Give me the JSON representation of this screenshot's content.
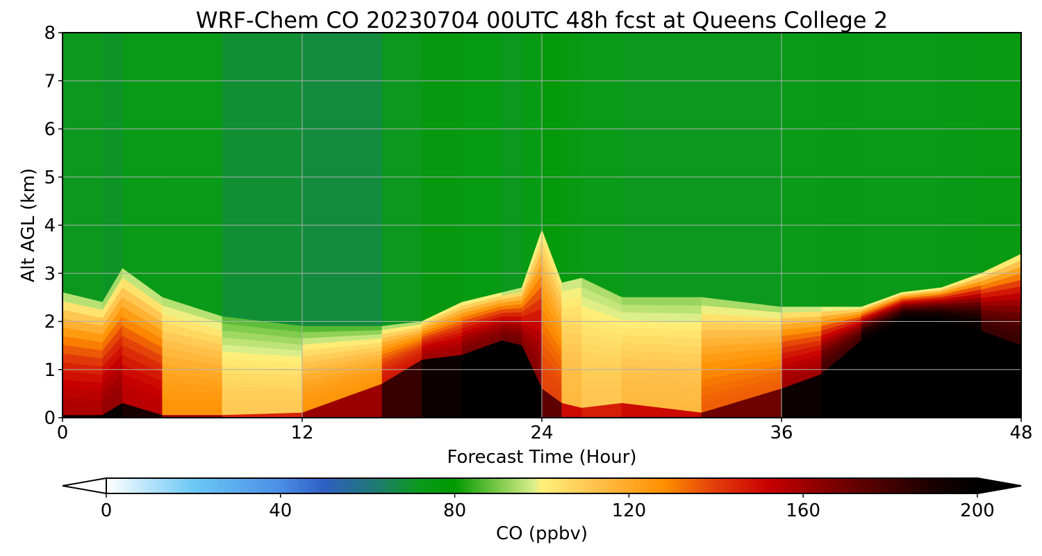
{
  "chart_data": {
    "type": "heatmap",
    "title": "WRF-Chem CO  20230704 00UTC 48h fcst at Queens College 2",
    "xlabel": "Forecast Time (Hour)",
    "ylabel": "Alt AGL (km)",
    "xlim": [
      0,
      48
    ],
    "ylim": [
      0,
      8
    ],
    "x_ticks": [
      0,
      12,
      24,
      36,
      48
    ],
    "y_ticks": [
      0,
      1,
      2,
      3,
      4,
      5,
      6,
      7,
      8
    ],
    "grid": true,
    "colorbar": {
      "label": "CO  (ppbv)",
      "range": [
        0,
        200
      ],
      "ticks": [
        0,
        40,
        80,
        120,
        160,
        200
      ],
      "extend": "both",
      "colormap": [
        {
          "value": 0,
          "color": "#ffffff"
        },
        {
          "value": 20,
          "color": "#6cc8f5"
        },
        {
          "value": 40,
          "color": "#4a8ee6"
        },
        {
          "value": 50,
          "color": "#2f5fc4"
        },
        {
          "value": 62,
          "color": "#1e7a70"
        },
        {
          "value": 72,
          "color": "#0a9a1a"
        },
        {
          "value": 80,
          "color": "#009900"
        },
        {
          "value": 90,
          "color": "#7cc94a"
        },
        {
          "value": 98,
          "color": "#d8ee8a"
        },
        {
          "value": 100,
          "color": "#fff07a"
        },
        {
          "value": 112,
          "color": "#ffc24d"
        },
        {
          "value": 128,
          "color": "#ff8f00"
        },
        {
          "value": 140,
          "color": "#e23c0a"
        },
        {
          "value": 152,
          "color": "#c80000"
        },
        {
          "value": 170,
          "color": "#6e0000"
        },
        {
          "value": 190,
          "color": "#180000"
        },
        {
          "value": 200,
          "color": "#000000"
        }
      ]
    },
    "times": [
      0,
      2,
      3,
      5,
      8,
      12,
      16,
      18,
      20,
      22,
      23,
      24,
      25,
      26,
      28,
      32,
      36,
      38,
      40,
      42,
      44,
      46,
      48
    ],
    "boundary_layer_top_km": [
      2.6,
      2.4,
      3.1,
      2.5,
      2.1,
      1.9,
      1.9,
      2.0,
      2.4,
      2.6,
      2.7,
      3.9,
      2.8,
      2.9,
      2.5,
      2.5,
      2.3,
      2.3,
      2.3,
      2.6,
      2.7,
      3.0,
      3.4
    ],
    "dense_core_top_km": [
      0.05,
      0.05,
      0.3,
      0.05,
      0.05,
      0.1,
      0.7,
      1.2,
      1.3,
      1.6,
      1.5,
      0.6,
      0.3,
      0.2,
      0.3,
      0.1,
      0.6,
      0.9,
      1.6,
      2.0,
      2.0,
      1.8,
      1.5
    ],
    "pbl_core_ppbv": [
      155,
      160,
      165,
      145,
      108,
      112,
      140,
      155,
      165,
      170,
      170,
      160,
      118,
      112,
      110,
      120,
      150,
      170,
      190,
      200,
      200,
      195,
      170
    ],
    "free_troposphere_ppbv": [
      72,
      70,
      68,
      76,
      70,
      62,
      66,
      76,
      78,
      72,
      70,
      80,
      78,
      74,
      72,
      70,
      72,
      73,
      74,
      72,
      74,
      75,
      77
    ]
  }
}
